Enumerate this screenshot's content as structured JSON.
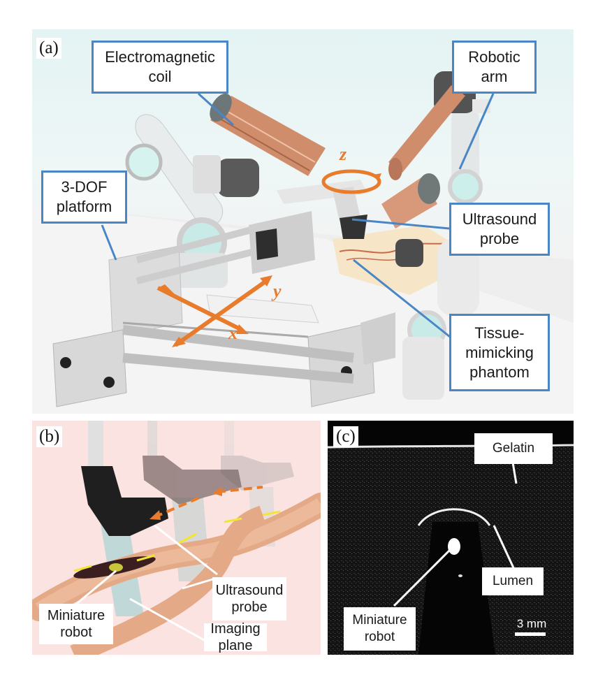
{
  "panel_a": {
    "label": "(a)",
    "callouts": {
      "electromagnetic_coil": "Electromagnetic\ncoil",
      "robotic_arm": "Robotic\narm",
      "platform": "3-DOF\nplatform",
      "ultrasound_probe": "Ultrasound\nprobe",
      "phantom": "Tissue-\nmimicking\nphantom"
    },
    "axes": {
      "x": "x",
      "y": "y",
      "z": "z"
    }
  },
  "panel_b": {
    "label": "(b)",
    "labels": {
      "ultrasound_probe": "Ultrasound\nprobe",
      "miniature_robot": "Miniature\nrobot",
      "imaging_plane": "Imaging\nplane"
    }
  },
  "panel_c": {
    "label": "(c)",
    "labels": {
      "gelatin": "Gelatin",
      "lumen": "Lumen",
      "miniature_robot": "Miniature\nrobot",
      "scale_bar": "3 mm"
    }
  },
  "colors": {
    "callout_border": "#4a86c5",
    "axis_arrow": "#e87b2c",
    "motion_arrow": "#f5e431"
  }
}
